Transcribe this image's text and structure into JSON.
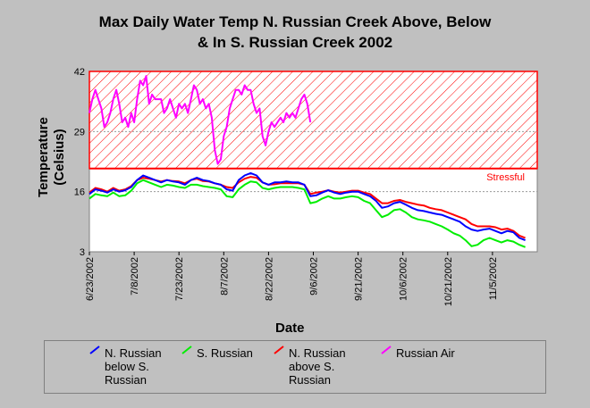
{
  "title_line1": "Max Daily Water Temp N. Russian Creek Above, Below",
  "title_line2": "& In S. Russian Creek 2002",
  "chart_data": {
    "type": "line",
    "ylabel_line1": "Temperature",
    "ylabel_line2": "(Celsius)",
    "xlabel": "Date",
    "ylim": [
      3,
      42
    ],
    "yticks": [
      3,
      16,
      29,
      42
    ],
    "xlim": [
      0,
      150
    ],
    "xticks": [
      "6/23/2002",
      "7/8/2002",
      "7/23/2002",
      "8/7/2002",
      "8/22/2002",
      "9/6/2002",
      "9/21/2002",
      "10/6/2002",
      "10/21/2002",
      "11/5/2002"
    ],
    "stress_label": "Stressful",
    "stress_threshold": 21,
    "colors": {
      "below": "#0000ff",
      "sruss": "#00ee00",
      "above": "#ff0000",
      "air": "#ff00ff",
      "stress": "#ff0000"
    },
    "series": [
      {
        "name": "N. Russian below S. Russian",
        "key": "below",
        "x": [
          0,
          2,
          4,
          6,
          8,
          10,
          12,
          14,
          16,
          18,
          20,
          22,
          24,
          26,
          28,
          30,
          32,
          34,
          36,
          38,
          40,
          42,
          44,
          46,
          48,
          50,
          52,
          54,
          56,
          58,
          60,
          62,
          64,
          66,
          68,
          70,
          72,
          74,
          76,
          78,
          80,
          82,
          84,
          86,
          88,
          90,
          92,
          94,
          96,
          98,
          100,
          102,
          104,
          106,
          108,
          110,
          112,
          114,
          116,
          118,
          120,
          122,
          124,
          126,
          128,
          130,
          132,
          134,
          136,
          138,
          140,
          142,
          144,
          146
        ],
        "values": [
          15.5,
          16.5,
          16.2,
          15.8,
          16.5,
          16.0,
          16.3,
          17.0,
          18.5,
          19.5,
          19.0,
          18.5,
          18.0,
          18.5,
          18.2,
          18.0,
          17.5,
          18.5,
          19.0,
          18.5,
          18.3,
          17.8,
          17.5,
          16.5,
          16.2,
          18.5,
          19.5,
          20.0,
          19.5,
          18.0,
          17.5,
          18.0,
          18.0,
          18.2,
          18.0,
          18.0,
          17.5,
          15.0,
          15.2,
          15.8,
          16.3,
          15.8,
          15.5,
          15.8,
          16.0,
          16.0,
          15.5,
          15.0,
          14.0,
          12.5,
          12.8,
          13.5,
          13.8,
          13.2,
          12.5,
          12.0,
          11.8,
          11.5,
          11.2,
          11.0,
          10.5,
          10.0,
          9.5,
          8.5,
          7.8,
          7.5,
          7.8,
          8.0,
          7.5,
          7.0,
          7.5,
          7.2,
          6.0,
          5.5
        ]
      },
      {
        "name": "S. Russian",
        "key": "sruss",
        "x": [
          0,
          2,
          4,
          6,
          8,
          10,
          12,
          14,
          16,
          18,
          20,
          22,
          24,
          26,
          28,
          30,
          32,
          34,
          36,
          38,
          40,
          42,
          44,
          46,
          48,
          50,
          52,
          54,
          56,
          58,
          60,
          62,
          64,
          66,
          68,
          70,
          72,
          74,
          76,
          78,
          80,
          82,
          84,
          86,
          88,
          90,
          92,
          94,
          96,
          98,
          100,
          102,
          104,
          106,
          108,
          110,
          112,
          114,
          116,
          118,
          120,
          122,
          124,
          126,
          128,
          130,
          132,
          134,
          136,
          138,
          140,
          142,
          144,
          146
        ],
        "values": [
          14.5,
          15.5,
          15.2,
          15.0,
          15.8,
          15.0,
          15.2,
          16.2,
          17.8,
          18.5,
          18.0,
          17.5,
          17.0,
          17.5,
          17.3,
          17.0,
          16.8,
          17.5,
          17.5,
          17.2,
          17.0,
          16.8,
          16.5,
          15.0,
          14.8,
          16.5,
          17.5,
          18.2,
          18.0,
          16.8,
          16.5,
          16.8,
          17.0,
          17.0,
          17.0,
          16.8,
          16.5,
          13.5,
          13.8,
          14.5,
          15.0,
          14.5,
          14.5,
          14.8,
          15.0,
          14.8,
          14.0,
          13.5,
          12.0,
          10.5,
          11.0,
          12.0,
          12.2,
          11.5,
          10.5,
          10.0,
          9.8,
          9.5,
          9.0,
          8.5,
          7.8,
          7.0,
          6.5,
          5.5,
          4.2,
          4.5,
          5.5,
          6.0,
          5.5,
          5.0,
          5.5,
          5.2,
          4.5,
          4.0
        ]
      },
      {
        "name": "N. Russian above S. Russian",
        "key": "above",
        "x": [
          0,
          2,
          4,
          6,
          8,
          10,
          12,
          14,
          16,
          18,
          20,
          22,
          24,
          26,
          28,
          30,
          32,
          34,
          36,
          38,
          40,
          42,
          44,
          46,
          48,
          50,
          52,
          54,
          56,
          58,
          60,
          62,
          64,
          66,
          68,
          70,
          72,
          74,
          76,
          78,
          80,
          82,
          84,
          86,
          88,
          90,
          92,
          94,
          96,
          98,
          100,
          102,
          104,
          106,
          108,
          110,
          112,
          114,
          116,
          118,
          120,
          122,
          124,
          126,
          128,
          130,
          132,
          134,
          136,
          138,
          140,
          142,
          144,
          146
        ],
        "values": [
          15.8,
          16.8,
          16.5,
          16.0,
          16.8,
          16.2,
          16.5,
          17.2,
          18.5,
          19.0,
          18.8,
          18.5,
          18.2,
          18.5,
          18.3,
          18.2,
          17.8,
          18.5,
          18.8,
          18.3,
          18.2,
          17.8,
          17.5,
          17.0,
          16.8,
          18.0,
          18.8,
          19.2,
          19.0,
          18.0,
          17.5,
          17.6,
          17.8,
          17.8,
          17.8,
          17.8,
          17.5,
          15.5,
          15.8,
          16.0,
          16.3,
          16.0,
          15.8,
          16.0,
          16.2,
          16.2,
          15.8,
          15.5,
          14.5,
          13.5,
          13.5,
          14.0,
          14.2,
          13.8,
          13.5,
          13.2,
          13.0,
          12.5,
          12.2,
          12.0,
          11.5,
          11.0,
          10.5,
          10.0,
          9.0,
          8.5,
          8.5,
          8.5,
          8.3,
          7.8,
          8.0,
          7.5,
          6.5,
          6.0
        ]
      },
      {
        "name": "Russian Air",
        "key": "air",
        "x": [
          0,
          1,
          2,
          3,
          4,
          5,
          6,
          7,
          8,
          9,
          10,
          11,
          12,
          13,
          14,
          15,
          16,
          17,
          18,
          19,
          20,
          21,
          22,
          23,
          24,
          25,
          26,
          27,
          28,
          29,
          30,
          31,
          32,
          33,
          34,
          35,
          36,
          37,
          38,
          39,
          40,
          41,
          42,
          43,
          44,
          45,
          46,
          47,
          48,
          49,
          50,
          51,
          52,
          53,
          54,
          55,
          56,
          57,
          58,
          59,
          60,
          61,
          62,
          63,
          64,
          65,
          66,
          67,
          68,
          69,
          70,
          71,
          72,
          73,
          74
        ],
        "values": [
          33,
          36,
          38,
          36,
          34,
          30,
          31,
          33,
          36,
          38,
          35,
          31,
          32,
          30,
          33,
          31,
          36,
          40,
          39,
          41,
          35,
          37,
          36,
          36,
          36,
          33,
          34,
          36,
          34,
          32,
          35,
          34,
          35,
          33,
          36,
          39,
          38,
          35,
          36,
          34,
          35,
          32,
          25,
          22,
          23,
          28,
          30,
          34,
          36,
          38,
          38,
          37,
          39,
          38,
          38,
          35,
          33,
          34,
          28,
          26,
          29,
          31,
          30,
          31,
          32,
          31,
          33,
          32,
          33,
          32,
          34,
          36,
          37,
          35,
          31
        ]
      }
    ],
    "legend": [
      {
        "key": "below",
        "label_lines": [
          "N. Russian",
          "below S.",
          "Russian"
        ]
      },
      {
        "key": "sruss",
        "label_lines": [
          "S. Russian"
        ]
      },
      {
        "key": "above",
        "label_lines": [
          "N. Russian",
          "above S.",
          "Russian"
        ]
      },
      {
        "key": "air",
        "label_lines": [
          "Russian Air"
        ]
      }
    ]
  }
}
